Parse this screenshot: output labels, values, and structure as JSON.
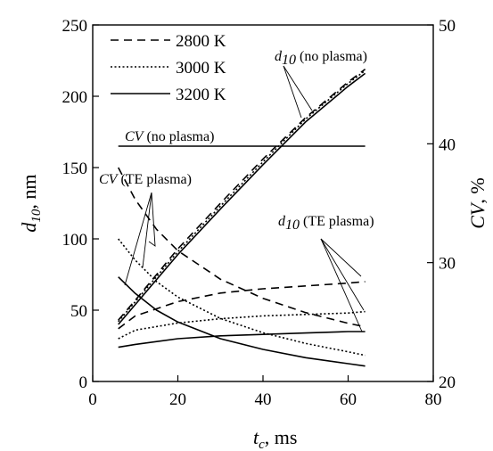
{
  "chart_data": {
    "type": "line",
    "x_axis": {
      "label_main": "t",
      "label_sub": "c",
      "label_unit": ", ms",
      "range": [
        0,
        80
      ],
      "ticks": [
        0,
        20,
        40,
        60,
        80
      ]
    },
    "y_left": {
      "label_main": "d",
      "label_sub": "10",
      "label_unit": ", nm",
      "range": [
        0,
        250
      ],
      "ticks": [
        0,
        50,
        100,
        150,
        200,
        250
      ]
    },
    "y_right": {
      "label_main": "CV",
      "label_unit": ", %",
      "range": [
        20,
        50
      ],
      "ticks": [
        20,
        30,
        40,
        50
      ]
    },
    "legend": {
      "placement": "top-left",
      "items": [
        {
          "label": "2800 K",
          "dash": "dashed"
        },
        {
          "label": "3000 K",
          "dash": "dotted"
        },
        {
          "label": "3200 K",
          "dash": "solid"
        }
      ]
    },
    "series": [
      {
        "name": "2800 K",
        "axis": "left",
        "dash": "dashed",
        "x": [
          6,
          10,
          20,
          30,
          40,
          50,
          60,
          64
        ],
        "y": [
          43,
          57,
          93,
          125,
          156,
          185,
          210,
          219
        ]
      },
      {
        "name": "3000 K",
        "axis": "left",
        "dash": "dotted",
        "x": [
          6,
          10,
          20,
          30,
          40,
          50,
          60,
          64
        ],
        "y": [
          42,
          56,
          91,
          123,
          154,
          184,
          209,
          218
        ]
      },
      {
        "name": "3200 K",
        "axis": "left",
        "dash": "solid",
        "x": [
          6,
          10,
          20,
          30,
          40,
          50,
          60,
          64
        ],
        "y": [
          40,
          54,
          89,
          121,
          152,
          182,
          207,
          216
        ]
      },
      {
        "name": "2800 K",
        "axis": "left",
        "dash": "dashed",
        "x": [
          6,
          10,
          20,
          30,
          40,
          50,
          60,
          64
        ],
        "y": [
          37,
          46,
          56,
          62,
          65,
          67,
          69,
          70
        ]
      },
      {
        "name": "3000 K",
        "axis": "left",
        "dash": "dotted",
        "x": [
          6,
          10,
          20,
          30,
          40,
          50,
          60,
          64
        ],
        "y": [
          30,
          36,
          41,
          44,
          46,
          47,
          48,
          49
        ]
      },
      {
        "name": "3200 K",
        "axis": "left",
        "dash": "solid",
        "x": [
          6,
          10,
          20,
          30,
          40,
          50,
          60,
          64
        ],
        "y": [
          24,
          26,
          30,
          32,
          33,
          34,
          35,
          35
        ]
      },
      {
        "name": "2800 K",
        "axis": "right",
        "dash": "dashed",
        "x": [
          6,
          10,
          15,
          20,
          30,
          40,
          50,
          60,
          64
        ],
        "y": [
          38.0,
          35.3,
          32.8,
          31.0,
          28.6,
          27.0,
          25.8,
          24.9,
          24.6
        ]
      },
      {
        "name": "3000 K",
        "axis": "right",
        "dash": "dotted",
        "x": [
          6,
          10,
          15,
          20,
          30,
          40,
          50,
          60,
          64
        ],
        "y": [
          32.0,
          30.2,
          28.4,
          27.1,
          25.3,
          24.1,
          23.2,
          22.5,
          22.2
        ]
      },
      {
        "name": "3200 K",
        "axis": "right",
        "dash": "solid",
        "x": [
          6,
          10,
          15,
          20,
          30,
          40,
          50,
          60,
          64
        ],
        "y": [
          28.8,
          27.4,
          26.0,
          25.0,
          23.6,
          22.7,
          22.0,
          21.5,
          21.3
        ]
      },
      {
        "name": "CV (no plasma)",
        "axis": "right",
        "dash": "solid",
        "x": [
          6,
          64
        ],
        "y": [
          39.8,
          39.8
        ]
      }
    ],
    "annotations": [
      {
        "italic": "d",
        "sub": "10",
        "text": " (no plasma)"
      },
      {
        "italic": "CV",
        "sub": "",
        "text": " (no plasma)"
      },
      {
        "italic": "CV",
        "sub": "",
        "text": " (TE plasma)"
      },
      {
        "italic": "d",
        "sub": "10",
        "text": " (TE plasma)"
      }
    ]
  }
}
